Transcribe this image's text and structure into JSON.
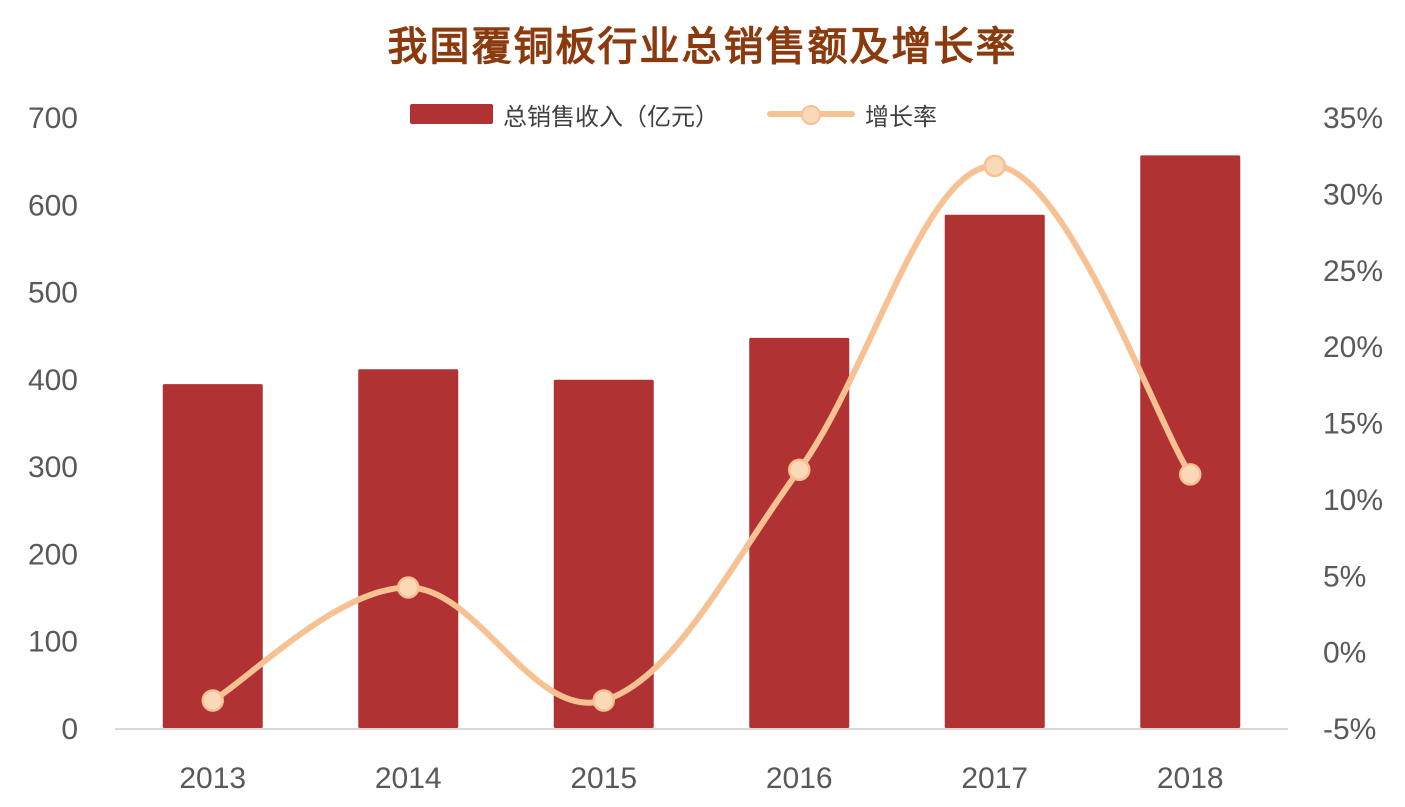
{
  "title": "我国覆铜板行业总销售额及增长率",
  "legend": {
    "bar_label": "总销售收入（亿元）",
    "line_label": "增长率"
  },
  "colors": {
    "title": "#8b3a0e",
    "bar": "#b03233",
    "line": "#f6c193",
    "marker_fill": "#fad9b8",
    "axis_text": "#595959",
    "baseline": "#d9d9d9"
  },
  "chart_data": {
    "type": "bar+line",
    "title": "我国覆铜板行业总销售额及增长率",
    "xlabel": "",
    "ylabel": "",
    "categories": [
      "2013",
      "2014",
      "2015",
      "2016",
      "2017",
      "2018"
    ],
    "series": [
      {
        "name": "总销售收入（亿元）",
        "type": "bar",
        "axis": "left",
        "values": [
          394,
          411,
          399,
          447,
          588,
          656
        ]
      },
      {
        "name": "增长率",
        "type": "line",
        "smooth": true,
        "axis": "right",
        "values": [
          -3.2,
          4.2,
          -3.2,
          11.9,
          31.8,
          11.6
        ]
      }
    ],
    "left_axis": {
      "ylim": [
        0,
        700
      ],
      "ticks": [
        "0",
        "100",
        "200",
        "300",
        "400",
        "500",
        "600",
        "700"
      ]
    },
    "right_axis": {
      "ylim": [
        -5,
        35
      ],
      "ticks": [
        "-5%",
        "0%",
        "5%",
        "10%",
        "15%",
        "20%",
        "25%",
        "30%",
        "35%"
      ]
    },
    "grid": false,
    "legend_position": "top"
  }
}
